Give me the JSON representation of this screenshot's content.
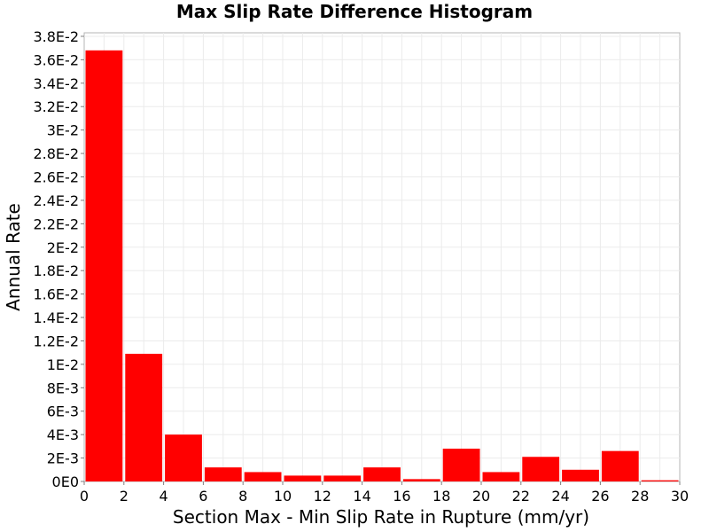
{
  "chart_data": {
    "type": "bar",
    "title": "Max Slip Rate Difference Histogram",
    "xlabel": "Section Max - Min Slip Rate in Rupture (mm/yr)",
    "ylabel": "Annual Rate",
    "bar_color": "#ff0000",
    "grid": true,
    "xlim": [
      0,
      30
    ],
    "ylim": [
      0,
      0.0383
    ],
    "x_ticks": [
      0,
      2,
      4,
      6,
      8,
      10,
      12,
      14,
      16,
      18,
      20,
      22,
      24,
      26,
      28,
      30
    ],
    "x_tick_labels": [
      "0",
      "2",
      "4",
      "6",
      "8",
      "10",
      "12",
      "14",
      "16",
      "18",
      "20",
      "22",
      "24",
      "26",
      "28",
      "30"
    ],
    "y_ticks": [
      0,
      0.002,
      0.004,
      0.006,
      0.008,
      0.01,
      0.012,
      0.014,
      0.016,
      0.018,
      0.02,
      0.022,
      0.024,
      0.026,
      0.028,
      0.03,
      0.032,
      0.034,
      0.036,
      0.038
    ],
    "y_tick_labels": [
      "0E0",
      "2E-3",
      "4E-3",
      "6E-3",
      "8E-3",
      "1E-2",
      "1.2E-2",
      "1.4E-2",
      "1.6E-2",
      "1.8E-2",
      "2E-2",
      "2.2E-2",
      "2.4E-2",
      "2.6E-2",
      "2.8E-2",
      "3E-2",
      "3.2E-2",
      "3.4E-2",
      "3.6E-2",
      "3.8E-2"
    ],
    "bin_width": 2,
    "bins": [
      {
        "start": 0,
        "end": 2,
        "value": 0.0368
      },
      {
        "start": 2,
        "end": 4,
        "value": 0.0109
      },
      {
        "start": 4,
        "end": 6,
        "value": 0.004
      },
      {
        "start": 6,
        "end": 8,
        "value": 0.0012
      },
      {
        "start": 8,
        "end": 10,
        "value": 0.0008
      },
      {
        "start": 10,
        "end": 12,
        "value": 0.0005
      },
      {
        "start": 12,
        "end": 14,
        "value": 0.0005
      },
      {
        "start": 14,
        "end": 16,
        "value": 0.0012
      },
      {
        "start": 16,
        "end": 18,
        "value": 0.0002
      },
      {
        "start": 18,
        "end": 20,
        "value": 0.0028
      },
      {
        "start": 20,
        "end": 22,
        "value": 0.0008
      },
      {
        "start": 22,
        "end": 24,
        "value": 0.0021
      },
      {
        "start": 24,
        "end": 26,
        "value": 0.001
      },
      {
        "start": 26,
        "end": 28,
        "value": 0.0026
      },
      {
        "start": 28,
        "end": 30,
        "value": 0.0001
      }
    ]
  }
}
